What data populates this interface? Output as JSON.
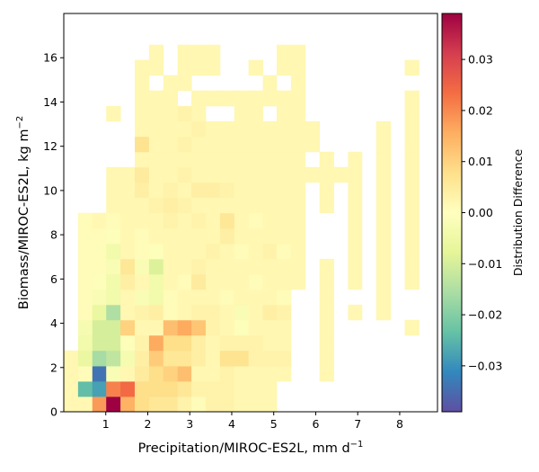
{
  "chart_data": {
    "type": "heatmap",
    "xlabel": {
      "main": "Precipitation/MIROC-ES2L,  mm d",
      "sup": "−1"
    },
    "ylabel": {
      "main": "Biomass/MIROC-ES2L,  kg m",
      "sup": "−2"
    },
    "colorbar_label": "Distribution Difference",
    "colormap": "Spectral_r",
    "colorbar_colors": [
      "#5e4fa2",
      "#3288bd",
      "#66c2a5",
      "#abdda4",
      "#e6f598",
      "#ffffbf",
      "#fee08b",
      "#fdae61",
      "#f46d43",
      "#d53e4f",
      "#9e0142"
    ],
    "xlim": [
      0,
      8.9
    ],
    "ylim": [
      0,
      18
    ],
    "vlim": [
      -0.039,
      0.039
    ],
    "x_ticks": [
      {
        "value": 1,
        "label": "1"
      },
      {
        "value": 2,
        "label": "2"
      },
      {
        "value": 3,
        "label": "3"
      },
      {
        "value": 4,
        "label": "4"
      },
      {
        "value": 5,
        "label": "5"
      },
      {
        "value": 6,
        "label": "6"
      },
      {
        "value": 7,
        "label": "7"
      },
      {
        "value": 8,
        "label": "8"
      }
    ],
    "y_ticks": [
      {
        "value": 0,
        "label": "0"
      },
      {
        "value": 2,
        "label": "2"
      },
      {
        "value": 4,
        "label": "4"
      },
      {
        "value": 6,
        "label": "6"
      },
      {
        "value": 8,
        "label": "8"
      },
      {
        "value": 10,
        "label": "10"
      },
      {
        "value": 12,
        "label": "12"
      },
      {
        "value": 14,
        "label": "14"
      },
      {
        "value": 16,
        "label": "16"
      }
    ],
    "colorbar_ticks": [
      {
        "value": 0.03,
        "label": "0.03"
      },
      {
        "value": 0.02,
        "label": "0.02"
      },
      {
        "value": 0.01,
        "label": "0.01"
      },
      {
        "value": 0.0,
        "label": "0.00"
      },
      {
        "value": -0.01,
        "label": "−0.01"
      },
      {
        "value": -0.02,
        "label": "−0.02"
      },
      {
        "value": -0.03,
        "label": "−0.03"
      }
    ],
    "x_bin_edges": [
      0,
      0.34,
      0.68,
      1.01,
      1.35,
      1.69,
      2.03,
      2.37,
      2.71,
      3.04,
      3.38,
      3.72,
      4.06,
      4.4,
      4.74,
      5.07,
      5.41,
      5.75,
      6.09,
      6.43,
      6.77,
      7.1,
      7.44,
      7.78,
      8.12,
      8.46,
      8.8
    ],
    "y_bin_edges": [
      0,
      0.69,
      1.38,
      2.07,
      2.77,
      3.46,
      4.15,
      4.84,
      5.53,
      6.22,
      6.91,
      7.6,
      8.29,
      8.99,
      9.68,
      10.37,
      11.06,
      11.75,
      12.44,
      13.13,
      13.82,
      14.52,
      15.21,
      15.9,
      16.59
    ],
    "values": [
      [
        0.002,
        0.002,
        0.018,
        0.039,
        0.015,
        0.008,
        0.006,
        0.006,
        0.003,
        0.001,
        0.003,
        0.003,
        0.002,
        0.002,
        0.002,
        0,
        0,
        0,
        0,
        0,
        0,
        0,
        0,
        0,
        0,
        0
      ],
      [
        0.002,
        -0.024,
        -0.028,
        0.021,
        0.024,
        0.008,
        0.008,
        0.008,
        0.006,
        0.003,
        0.003,
        0.003,
        0.002,
        0.002,
        0.002,
        0,
        0,
        0,
        0,
        0,
        0,
        0,
        0,
        0,
        0,
        0
      ],
      [
        0.002,
        0.001,
        -0.034,
        -0.002,
        0.002,
        0.005,
        0.008,
        0.01,
        0.013,
        0.002,
        0.002,
        0.003,
        0.002,
        0.002,
        0.002,
        0.002,
        0,
        0,
        0.002,
        0,
        0,
        0,
        0,
        0,
        0,
        0
      ],
      [
        0.002,
        -0.006,
        -0.016,
        -0.013,
        -0.003,
        0.004,
        0.011,
        0.006,
        0.006,
        0.004,
        0.002,
        0.007,
        0.007,
        0.003,
        0.003,
        0.003,
        0,
        0,
        0.002,
        0,
        0,
        0,
        0,
        0,
        0,
        0
      ],
      [
        0,
        -0.004,
        -0.01,
        -0.01,
        -0.001,
        0.003,
        0.016,
        0.008,
        0.008,
        0.004,
        0.002,
        0.003,
        0.003,
        0.003,
        0.002,
        0.002,
        0,
        0,
        0.002,
        0,
        0,
        0,
        0,
        0,
        0,
        0
      ],
      [
        0,
        -0.003,
        -0.01,
        -0.01,
        0.01,
        0.002,
        0.002,
        0.013,
        0.016,
        0.012,
        0.003,
        0.002,
        -0.001,
        0.002,
        0.002,
        0.002,
        0,
        0,
        0.002,
        0,
        0,
        0,
        0,
        0,
        0.002,
        0
      ],
      [
        0,
        0.001,
        -0.006,
        -0.015,
        0.002,
        0.003,
        0.004,
        0.001,
        0.002,
        0.003,
        0.003,
        0.002,
        -0.002,
        0.002,
        0.004,
        0.003,
        0,
        0,
        0.002,
        0,
        0.002,
        0,
        0.002,
        0,
        0,
        0
      ],
      [
        0,
        0.001,
        -0.002,
        -0.004,
        0.002,
        -0.002,
        -0.004,
        0.001,
        0.002,
        0.002,
        0.002,
        0.001,
        0.002,
        0.002,
        0.002,
        0.001,
        0,
        0,
        0.002,
        0,
        0,
        0,
        0.002,
        0,
        0,
        0
      ],
      [
        0,
        0.001,
        -0.001,
        -0.004,
        0.004,
        0.002,
        -0.004,
        0.002,
        0.001,
        0.005,
        0.002,
        0.002,
        0.002,
        0.001,
        0.002,
        0.002,
        0.002,
        0,
        0.002,
        0,
        0.002,
        0,
        0.002,
        0,
        0.002,
        0
      ],
      [
        0,
        0.001,
        0.001,
        -0.002,
        0.006,
        -0.002,
        -0.009,
        0.002,
        0.002,
        0.003,
        0.002,
        0.002,
        0.002,
        0.002,
        0.002,
        0.002,
        0.002,
        0,
        0.002,
        0,
        0.002,
        0,
        0.002,
        0,
        0.002,
        0
      ],
      [
        0,
        0.001,
        0.001,
        -0.004,
        0.002,
        0.001,
        -0.001,
        0.002,
        0.002,
        0.002,
        0.003,
        0.002,
        0.001,
        0.002,
        0.003,
        0.001,
        0.002,
        0,
        0,
        0,
        0.002,
        0,
        0.002,
        0,
        0.002,
        0
      ],
      [
        0,
        0.001,
        0.001,
        -0.001,
        0.002,
        0.001,
        0.002,
        0.002,
        0.002,
        0.002,
        0.002,
        0.004,
        0.002,
        0.002,
        0.002,
        0.002,
        0.002,
        0,
        0,
        0,
        0.002,
        0,
        0.002,
        0,
        0.002,
        0
      ],
      [
        0,
        0.001,
        0.002,
        0.001,
        0.002,
        0.002,
        0.002,
        0.003,
        0.002,
        0.003,
        0.002,
        0.006,
        0.002,
        0.001,
        0.002,
        0.002,
        0.002,
        0,
        0,
        0,
        0.002,
        0,
        0.002,
        0,
        0.002,
        0
      ],
      [
        0,
        0,
        0,
        0.002,
        0.002,
        0.002,
        0.003,
        0.004,
        0.003,
        0.002,
        0.002,
        0.002,
        0.002,
        0.002,
        0.002,
        0.002,
        0.002,
        0,
        0.002,
        0,
        0.002,
        0,
        0.002,
        0,
        0.002,
        0
      ],
      [
        0,
        0,
        0,
        0.002,
        0.002,
        0.004,
        0.002,
        0.003,
        0.002,
        0.004,
        0.004,
        0.003,
        0.002,
        0.002,
        0.002,
        0.002,
        0.002,
        0,
        0.002,
        0,
        0.002,
        0,
        0.002,
        0,
        0.002,
        0
      ],
      [
        0,
        0,
        0,
        0.002,
        0.002,
        0.005,
        0.002,
        0.002,
        0.003,
        0.002,
        0.002,
        0.002,
        0.002,
        0.002,
        0.002,
        0.002,
        0.002,
        0.002,
        0.002,
        0.002,
        0.002,
        0,
        0.002,
        0,
        0.002,
        0
      ],
      [
        0,
        0,
        0,
        0,
        0,
        0.002,
        0.002,
        0.002,
        0.002,
        0.002,
        0.002,
        0.002,
        0.002,
        0.002,
        0.002,
        0.002,
        0.002,
        0,
        0.002,
        0,
        0.002,
        0,
        0.002,
        0,
        0.002,
        0
      ],
      [
        0,
        0,
        0,
        0,
        0,
        0.007,
        0.002,
        0.002,
        0.003,
        0.002,
        0.002,
        0.002,
        0.002,
        0.002,
        0.002,
        0.002,
        0.002,
        0.002,
        0,
        0,
        0,
        0,
        0.002,
        0,
        0.002,
        0
      ],
      [
        0,
        0,
        0,
        0,
        0,
        0.002,
        0.002,
        0.002,
        0.002,
        0.003,
        0.002,
        0.002,
        0.002,
        0.002,
        0.002,
        0.002,
        0.002,
        0.002,
        0,
        0,
        0,
        0,
        0.002,
        0,
        0.002,
        0
      ],
      [
        0,
        0,
        0,
        0.002,
        0,
        0.002,
        0.002,
        0.002,
        0.003,
        0.002,
        0,
        0,
        0.002,
        0.002,
        0,
        0.002,
        0.002,
        0,
        0,
        0,
        0,
        0,
        0,
        0,
        0.002,
        0
      ],
      [
        0,
        0,
        0,
        0,
        0,
        0.002,
        0.002,
        0.002,
        0,
        0.002,
        0.002,
        0.002,
        0.002,
        0.002,
        0.002,
        0.002,
        0.002,
        0,
        0,
        0,
        0,
        0,
        0,
        0,
        0.002,
        0
      ],
      [
        0,
        0,
        0,
        0,
        0,
        0.002,
        0,
        0.002,
        0.002,
        0,
        0,
        0,
        0,
        0,
        0.002,
        0,
        0.002,
        0,
        0,
        0,
        0,
        0,
        0,
        0,
        0,
        0
      ],
      [
        0,
        0,
        0,
        0,
        0,
        0.002,
        0.002,
        0,
        0.002,
        0.002,
        0.002,
        0,
        0,
        0.002,
        0,
        0.002,
        0.002,
        0,
        0,
        0,
        0,
        0,
        0,
        0,
        0.002,
        0
      ],
      [
        0,
        0,
        0,
        0,
        0,
        0,
        0.002,
        0,
        0.002,
        0.002,
        0.002,
        0,
        0,
        0,
        0,
        0.002,
        0.002,
        0,
        0,
        0,
        0,
        0,
        0,
        0,
        0,
        0
      ]
    ]
  }
}
